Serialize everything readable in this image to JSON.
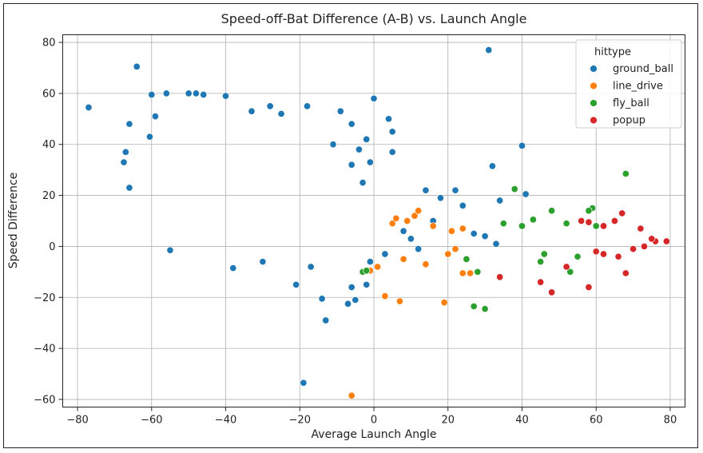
{
  "chart_data": {
    "type": "scatter",
    "title": "Speed-off-Bat Difference (A-B) vs. Launch Angle",
    "xlabel": "Average Launch Angle",
    "ylabel": "Speed Difference",
    "xlim": [
      -84,
      84
    ],
    "ylim": [
      -63,
      83
    ],
    "xticks": [
      -80,
      -60,
      -40,
      -20,
      0,
      20,
      40,
      60,
      80
    ],
    "yticks": [
      -60,
      -40,
      -20,
      0,
      20,
      40,
      60,
      80
    ],
    "xtick_labels": [
      "−80",
      "−60",
      "−40",
      "−20",
      "0",
      "20",
      "40",
      "60",
      "80"
    ],
    "ytick_labels": [
      "−60",
      "−40",
      "−20",
      "0",
      "20",
      "40",
      "60",
      "80"
    ],
    "grid": true,
    "legend": {
      "title": "hittype",
      "placement": "top-right"
    },
    "series": [
      {
        "name": "ground_ball",
        "color": "#1f77b4",
        "points": [
          [
            -77,
            54.5
          ],
          [
            -64,
            70.5
          ],
          [
            -66,
            48
          ],
          [
            -67,
            37
          ],
          [
            -67.5,
            33
          ],
          [
            -66,
            23
          ],
          [
            -60,
            59.5
          ],
          [
            -59,
            51
          ],
          [
            -60.5,
            43
          ],
          [
            -56,
            60
          ],
          [
            -50,
            60
          ],
          [
            -48,
            60
          ],
          [
            -46,
            59.5
          ],
          [
            -40,
            59
          ],
          [
            -33,
            53
          ],
          [
            -28,
            55
          ],
          [
            -25,
            52
          ],
          [
            -18,
            55
          ],
          [
            -9,
            53
          ],
          [
            -6,
            48
          ],
          [
            0,
            58
          ],
          [
            4,
            50
          ],
          [
            5,
            37
          ],
          [
            5,
            45
          ],
          [
            -55,
            -1.5
          ],
          [
            -38,
            -8.5
          ],
          [
            -30,
            -6
          ],
          [
            -21,
            -15
          ],
          [
            -17,
            -8
          ],
          [
            -14,
            -20.5
          ],
          [
            -13,
            -29
          ],
          [
            -5,
            -21
          ],
          [
            -7,
            -22.5
          ],
          [
            -19,
            -53.5
          ],
          [
            -6,
            -16
          ],
          [
            -2,
            -15
          ],
          [
            14,
            22
          ],
          [
            18,
            19
          ],
          [
            22,
            22
          ],
          [
            24,
            16
          ],
          [
            31,
            77
          ],
          [
            32,
            31.5
          ],
          [
            34,
            18
          ],
          [
            40,
            39.5
          ],
          [
            41,
            20.5
          ],
          [
            27,
            5
          ],
          [
            30,
            4
          ],
          [
            33,
            1
          ],
          [
            10,
            3
          ],
          [
            12,
            -1
          ],
          [
            8,
            6
          ],
          [
            16,
            10
          ],
          [
            -1,
            -6
          ],
          [
            3,
            -3
          ],
          [
            -3,
            25
          ],
          [
            -6,
            32
          ],
          [
            -11,
            40
          ],
          [
            -2,
            42
          ],
          [
            -4,
            38
          ],
          [
            -1,
            33
          ]
        ]
      },
      {
        "name": "line_drive",
        "color": "#ff7f0e",
        "points": [
          [
            -6,
            -58.5
          ],
          [
            3,
            -19.5
          ],
          [
            7,
            -21.5
          ],
          [
            19,
            -22
          ],
          [
            11,
            12
          ],
          [
            12,
            14
          ],
          [
            24,
            -10.5
          ],
          [
            26,
            -10.5
          ],
          [
            20,
            -3
          ],
          [
            8,
            -5
          ],
          [
            14,
            -7
          ],
          [
            22,
            -1
          ],
          [
            5,
            9
          ],
          [
            6,
            11
          ],
          [
            9,
            10
          ],
          [
            1,
            -8
          ],
          [
            -1,
            -9.5
          ],
          [
            16,
            8
          ],
          [
            21,
            6
          ],
          [
            24,
            7
          ]
        ]
      },
      {
        "name": "fly_ball",
        "color": "#2ca02c",
        "points": [
          [
            38,
            22.5
          ],
          [
            68,
            28.5
          ],
          [
            59,
            15
          ],
          [
            58,
            14
          ],
          [
            48,
            14
          ],
          [
            43,
            10.5
          ],
          [
            27,
            -23.5
          ],
          [
            30,
            -24.5
          ],
          [
            28,
            -10
          ],
          [
            25,
            -5
          ],
          [
            45,
            -6
          ],
          [
            53,
            -10
          ],
          [
            35,
            9
          ],
          [
            40,
            8
          ],
          [
            52,
            9
          ],
          [
            -3,
            -10
          ],
          [
            -2,
            -9.5
          ],
          [
            46,
            -3
          ],
          [
            55,
            -4
          ],
          [
            60,
            8
          ]
        ]
      },
      {
        "name": "popup",
        "color": "#d62728",
        "points": [
          [
            48,
            -18
          ],
          [
            45,
            -14
          ],
          [
            58,
            -16
          ],
          [
            68,
            -10.5
          ],
          [
            34,
            -12
          ],
          [
            52,
            -8
          ],
          [
            56,
            10
          ],
          [
            58,
            9.5
          ],
          [
            65,
            10
          ],
          [
            67,
            13
          ],
          [
            62,
            8
          ],
          [
            72,
            7
          ],
          [
            79,
            2
          ],
          [
            76,
            2
          ],
          [
            75,
            3
          ],
          [
            66,
            -4
          ],
          [
            62,
            -3
          ],
          [
            70,
            -1
          ],
          [
            60,
            -2
          ],
          [
            73,
            0
          ]
        ]
      }
    ]
  }
}
